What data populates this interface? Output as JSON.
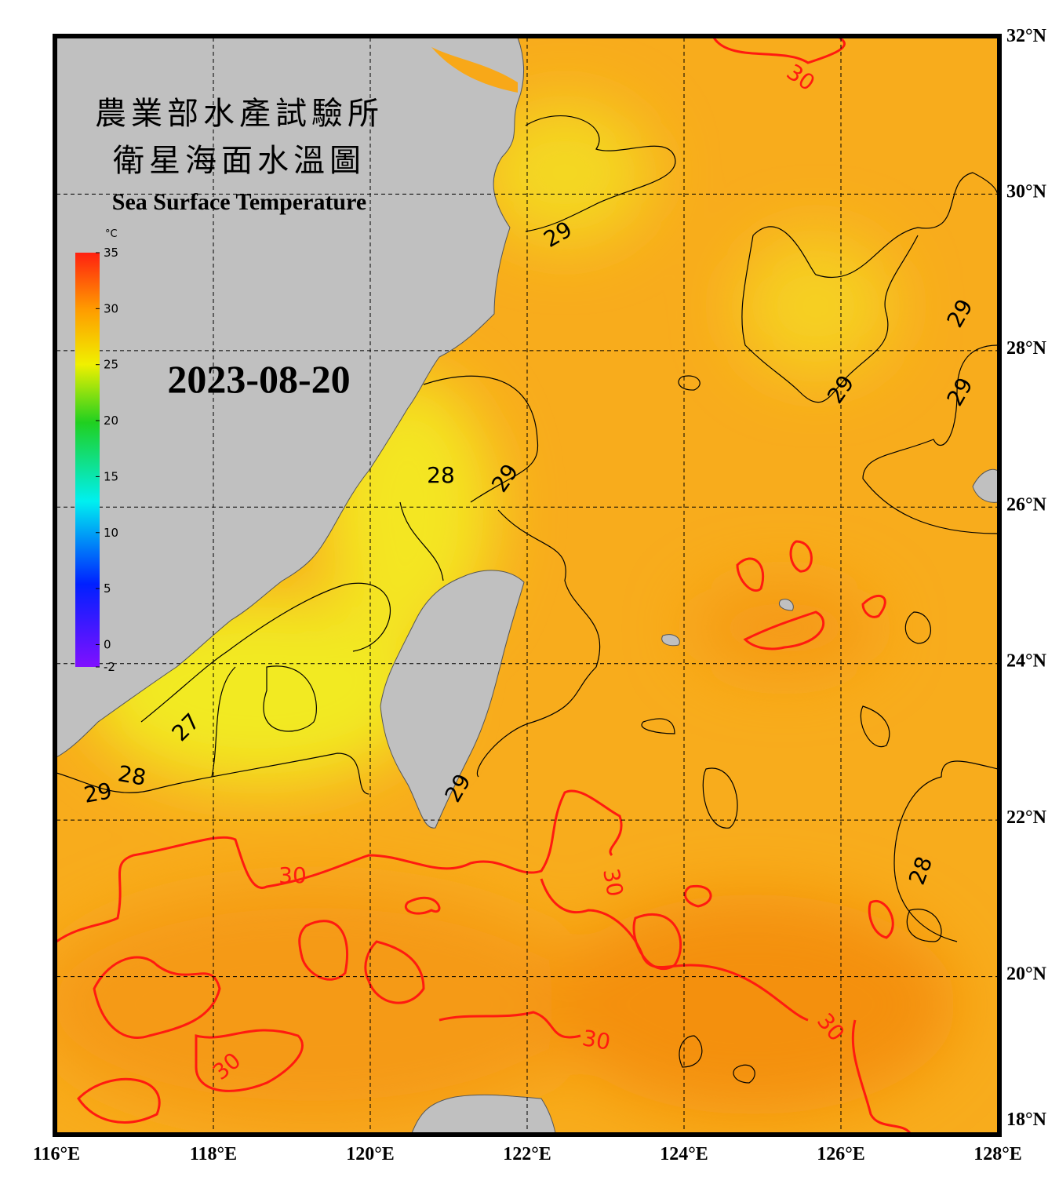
{
  "title": {
    "zh_line1": "農業部水產試驗所",
    "zh_line2": "衛星海面水溫圖",
    "en": "Sea Surface Temperature"
  },
  "date": "2023-08-20",
  "map": {
    "xlim": [
      116,
      128
    ],
    "ylim": [
      18,
      32
    ],
    "xticks": [
      {
        "value": 116,
        "label": "116°E"
      },
      {
        "value": 118,
        "label": "118°E"
      },
      {
        "value": 120,
        "label": "120°E"
      },
      {
        "value": 122,
        "label": "122°E"
      },
      {
        "value": 124,
        "label": "124°E"
      },
      {
        "value": 126,
        "label": "126°E"
      },
      {
        "value": 128,
        "label": "128°E"
      }
    ],
    "yticks": [
      {
        "value": 32,
        "label": "32°N"
      },
      {
        "value": 30,
        "label": "30°N"
      },
      {
        "value": 28,
        "label": "28°N"
      },
      {
        "value": 26,
        "label": "26°N"
      },
      {
        "value": 24,
        "label": "24°N"
      },
      {
        "value": 22,
        "label": "22°N"
      },
      {
        "value": 20,
        "label": "20°N"
      },
      {
        "value": 18,
        "label": "18°N"
      }
    ],
    "grid": true
  },
  "colorbar": {
    "unit": "°C",
    "lim": [
      -2,
      35
    ],
    "ticks": [
      35,
      30,
      25,
      20,
      15,
      10,
      5,
      0,
      -2
    ]
  },
  "contour_labels": [
    29,
    29,
    29,
    29,
    28,
    29,
    28,
    27,
    28,
    29,
    29,
    30,
    30,
    30,
    30,
    30,
    30
  ]
}
